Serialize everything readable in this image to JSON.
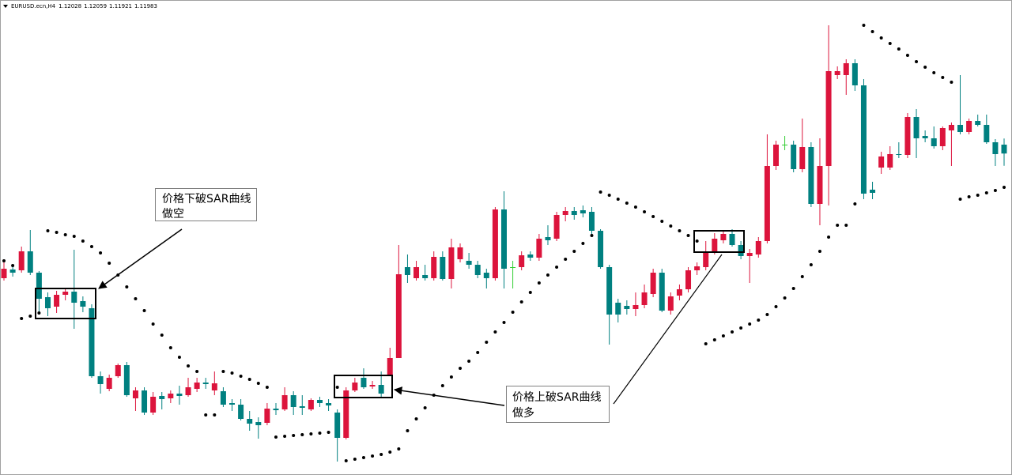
{
  "chart_data": {
    "type": "candlestick",
    "title": "EURUSD.ecn,H4",
    "ylim": [
      1.10356,
      1.1276
    ],
    "colors": {
      "up": "#dc143c",
      "down": "#008080",
      "flat": "#32cd32",
      "sar": "#000000"
    },
    "open": [
      1.11352,
      1.11396,
      1.11392,
      1.11488,
      1.1138,
      1.11256,
      1.11208,
      1.11268,
      1.11284,
      1.11236,
      1.112,
      1.10856,
      1.10792,
      1.10856,
      1.10912,
      1.10744,
      1.10784,
      1.10672,
      1.10756,
      1.10744,
      1.10768,
      1.1076,
      1.10792,
      1.10824,
      1.10784,
      1.1078,
      1.1072,
      1.10712,
      1.1064,
      1.10624,
      1.1062,
      1.10692,
      1.10688,
      1.1076,
      1.10704,
      1.10688,
      1.10736,
      1.1072,
      1.10672,
      1.10544,
      1.10784,
      1.10848,
      1.10804,
      1.10812,
      1.1086,
      1.10948,
      1.11408,
      1.11352,
      1.11368,
      1.11352,
      1.1146,
      1.11348,
      1.11448,
      1.1144,
      1.1142,
      1.1138,
      1.11352,
      1.117,
      1.11408,
      1.11408,
      1.11472,
      1.11456,
      1.1156,
      1.11552,
      1.11672,
      1.11692,
      1.11696,
      1.11688,
      1.11592,
      1.11408,
      1.11228,
      1.11212,
      1.11196,
      1.11216,
      1.11272,
      1.1138,
      1.11188,
      1.11264,
      1.11296,
      1.11392,
      1.11408,
      1.11488,
      1.11544,
      1.11576,
      1.1152,
      1.11464,
      1.11472,
      1.1154,
      1.1192,
      1.12028,
      1.12028,
      1.11904,
      1.12016,
      1.11728,
      1.1192,
      1.1238,
      1.1238,
      1.1244,
      1.12328,
      1.118,
      1.11912,
      1.11912,
      1.1198,
      1.11976,
      1.12168,
      1.12072,
      1.1206,
      1.1202,
      1.121,
      1.12128,
      1.12092,
      1.12148,
      1.12128,
      1.1204,
      1.12028
    ],
    "high": [
      1.11448,
      1.11416,
      1.11512,
      1.11596,
      1.11388,
      1.1128,
      1.11288,
      1.113,
      1.11496,
      1.1126,
      1.1122,
      1.1088,
      1.10864,
      1.1092,
      1.10928,
      1.108,
      1.108,
      1.10776,
      1.10776,
      1.10784,
      1.10808,
      1.10848,
      1.10848,
      1.10848,
      1.1088,
      1.108,
      1.1074,
      1.1074,
      1.1068,
      1.10648,
      1.1072,
      1.1072,
      1.108,
      1.1078,
      1.1076,
      1.10744,
      1.10752,
      1.1074,
      1.10688,
      1.108,
      1.10848,
      1.10896,
      1.10832,
      1.1088,
      1.11,
      1.1152,
      1.11472,
      1.1144,
      1.1142,
      1.11488,
      1.11488,
      1.11552,
      1.11528,
      1.1148,
      1.1144,
      1.114,
      1.11712,
      1.11792,
      1.1144,
      1.11488,
      1.11488,
      1.11576,
      1.1162,
      1.11688,
      1.11712,
      1.11712,
      1.1172,
      1.11712,
      1.116,
      1.1142,
      1.11248,
      1.1124,
      1.1128,
      1.1132,
      1.114,
      1.114,
      1.1128,
      1.1132,
      1.11408,
      1.11432,
      1.1154,
      1.1158,
      1.11592,
      1.116,
      1.1154,
      1.115,
      1.1156,
      1.1208,
      1.12048,
      1.12072,
      1.12048,
      1.1216,
      1.1204,
      1.1206,
      1.12632,
      1.12424,
      1.1246,
      1.1246,
      1.1236,
      1.1184,
      1.11992,
      1.1202,
      1.1204,
      1.12188,
      1.12208,
      1.121,
      1.1212,
      1.1212,
      1.1214,
      1.1238,
      1.1216,
      1.1218,
      1.1218,
      1.12056,
      1.12059
    ],
    "low": [
      1.1134,
      1.1136,
      1.1138,
      1.11368,
      1.1118,
      1.1116,
      1.11176,
      1.1124,
      1.11096,
      1.1118,
      1.10848,
      1.10768,
      1.1078,
      1.10848,
      1.10752,
      1.1068,
      1.1066,
      1.1066,
      1.10688,
      1.1072,
      1.10712,
      1.10752,
      1.10776,
      1.10792,
      1.1076,
      1.107,
      1.1068,
      1.10632,
      1.1058,
      1.1054,
      1.10608,
      1.1066,
      1.1068,
      1.1066,
      1.1066,
      1.1068,
      1.107,
      1.1068,
      1.10424,
      1.10536,
      1.10776,
      1.10792,
      1.10792,
      1.10752,
      1.10856,
      1.10948,
      1.11328,
      1.1134,
      1.1134,
      1.1134,
      1.1134,
      1.113,
      1.11432,
      1.114,
      1.11352,
      1.113,
      1.1134,
      1.113,
      1.113,
      1.11392,
      1.1144,
      1.1144,
      1.1152,
      1.1154,
      1.1164,
      1.11648,
      1.1166,
      1.11568,
      1.114,
      1.11016,
      1.11128,
      1.11168,
      1.1116,
      1.112,
      1.11256,
      1.1118,
      1.11168,
      1.1124,
      1.1128,
      1.11368,
      1.11392,
      1.11472,
      1.11528,
      1.11512,
      1.11448,
      1.11328,
      1.11456,
      1.11528,
      1.119,
      1.12,
      1.11888,
      1.11888,
      1.11712,
      1.1162,
      1.1172,
      1.1236,
      1.1228,
      1.123,
      1.11752,
      1.11752,
      1.1188,
      1.119,
      1.1196,
      1.1196,
      1.1196,
      1.1204,
      1.12008,
      1.12,
      1.1192,
      1.1208,
      1.1208,
      1.1212,
      1.12032,
      1.1192,
      1.11921
    ],
    "close": [
      1.114,
      1.1138,
      1.11488,
      1.1138,
      1.11248,
      1.112,
      1.11268,
      1.11284,
      1.11228,
      1.11208,
      1.10856,
      1.10816,
      1.10848,
      1.10912,
      1.1076,
      1.10784,
      1.10672,
      1.10752,
      1.1074,
      1.10768,
      1.10756,
      1.108,
      1.10824,
      1.10816,
      1.1082,
      1.10712,
      1.10712,
      1.1064,
      1.10616,
      1.10608,
      1.10692,
      1.10684,
      1.1076,
      1.107,
      1.10696,
      1.10736,
      1.1072,
      1.10708,
      1.10544,
      1.10784,
      1.10824,
      1.108,
      1.10812,
      1.10768,
      1.10948,
      1.11372,
      1.11368,
      1.11408,
      1.11352,
      1.1146,
      1.11348,
      1.11508,
      1.11508,
      1.1142,
      1.11368,
      1.11352,
      1.117,
      1.114,
      1.11408,
      1.11468,
      1.11456,
      1.11552,
      1.11544,
      1.11672,
      1.11692,
      1.11672,
      1.1168,
      1.11592,
      1.11408,
      1.11168,
      1.11168,
      1.11196,
      1.11216,
      1.1128,
      1.1138,
      1.11188,
      1.1126,
      1.11296,
      1.11392,
      1.11412,
      1.11488,
      1.11552,
      1.11576,
      1.1152,
      1.11464,
      1.1148,
      1.1154,
      1.1192,
      1.12028,
      1.12028,
      1.11904,
      1.12016,
      1.11728,
      1.1192,
      1.124,
      1.124,
      1.1244,
      1.12328,
      1.1178,
      1.11784,
      1.11968,
      1.1198,
      1.11976,
      1.12168,
      1.1206,
      1.1206,
      1.1202,
      1.12112,
      1.12128,
      1.12092,
      1.12148,
      1.12128,
      1.1204,
      1.1198,
      1.11983
    ],
    "sar": [
      1.1144,
      1.11416,
      1.11148,
      1.1116,
      1.11176,
      1.11592,
      1.11584,
      1.11572,
      1.11564,
      1.1154,
      1.11512,
      1.1148,
      1.11428,
      1.11368,
      1.11308,
      1.11248,
      1.11188,
      1.1112,
      1.11064,
      1.11,
      1.10952,
      1.10908,
      1.1088,
      1.1066,
      1.1066,
      1.1088,
      1.10872,
      1.10856,
      1.1084,
      1.1082,
      1.108,
      1.10548,
      1.10552,
      1.10556,
      1.1056,
      1.10564,
      1.10568,
      1.10572,
      1.108,
      1.10428,
      1.10436,
      1.10444,
      1.10452,
      1.1046,
      1.10472,
      1.10488,
      1.1058,
      1.1064,
      1.10696,
      1.1076,
      1.10808,
      1.10852,
      1.10896,
      1.10932,
      1.10976,
      1.11028,
      1.1108,
      1.11128,
      1.1118,
      1.11232,
      1.1128,
      1.11328,
      1.11368,
      1.11408,
      1.11448,
      1.11488,
      1.11528,
      1.11568,
      1.11788,
      1.11772,
      1.11752,
      1.11732,
      1.11712,
      1.11688,
      1.11664,
      1.1164,
      1.11616,
      1.11592,
      1.11568,
      1.1154,
      1.1102,
      1.1104,
      1.1106,
      1.1108,
      1.111,
      1.1112,
      1.1114,
      1.11168,
      1.11208,
      1.11252,
      1.113,
      1.1136,
      1.1142,
      1.11488,
      1.1156,
      1.1162,
      1.1162,
      1.11728,
      1.12632,
      1.126,
      1.12568,
      1.1254,
      1.12512,
      1.1248,
      1.12448,
      1.1242,
      1.12392,
      1.12368,
      1.12344,
      1.11752,
      1.11764,
      1.11772,
      1.11784,
      1.11796,
      1.11812
    ],
    "annotations": [
      [
        "价格下破SAR曲线",
        "做空"
      ],
      [
        "价格上破SAR曲线",
        "做多"
      ]
    ]
  }
}
